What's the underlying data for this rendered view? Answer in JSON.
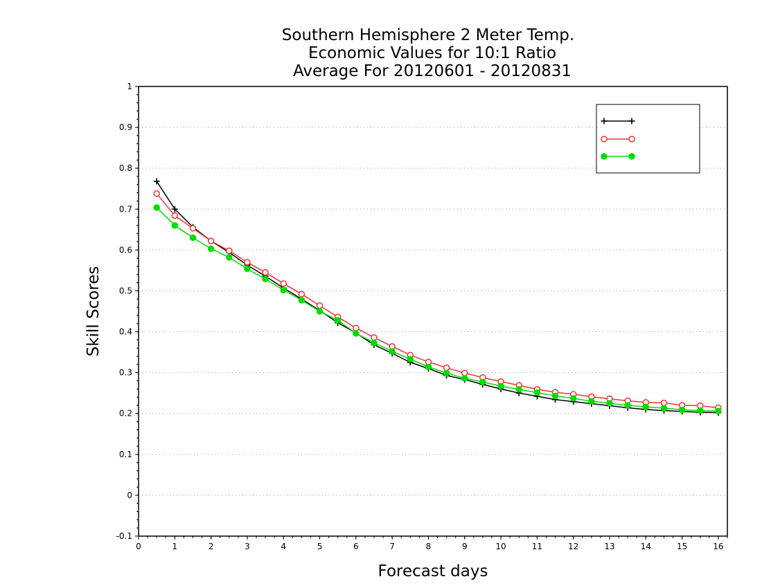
{
  "chart_data": {
    "type": "line",
    "title": [
      "Southern Hemisphere 2 Meter Temp.",
      "Economic Values for 10:1 Ratio",
      "Average For 20120601 - 20120831"
    ],
    "xlabel": "Forecast days",
    "ylabel": "Skill Scores",
    "xlim": [
      0,
      16.25
    ],
    "ylim": [
      -0.1,
      1
    ],
    "xticks": [
      "0",
      "1",
      "2",
      "3",
      "4",
      "5",
      "6",
      "7",
      "8",
      "9",
      "10",
      "11",
      "12",
      "13",
      "14",
      "15",
      "16"
    ],
    "yticks": [
      "-0.1",
      "0",
      "0.1",
      "0.2",
      "0.3",
      "0.4",
      "0.5",
      "0.6",
      "0.7",
      "0.8",
      "0.9",
      "1"
    ],
    "grid": true,
    "legend_position": "top-right",
    "x": [
      0.5,
      1,
      1.5,
      2,
      2.5,
      3,
      3.5,
      4,
      4.5,
      5,
      5.5,
      6,
      6.5,
      7,
      7.5,
      8,
      8.5,
      9,
      9.5,
      10,
      10.5,
      11,
      11.5,
      12,
      12.5,
      13,
      13.5,
      14,
      14.5,
      15,
      15.5,
      16
    ],
    "series": [
      {
        "name": "",
        "color": "#000000",
        "marker": "plus",
        "values": [
          0.768,
          0.7,
          0.656,
          0.622,
          0.594,
          0.563,
          0.536,
          0.507,
          0.48,
          0.452,
          0.422,
          0.397,
          0.368,
          0.347,
          0.325,
          0.31,
          0.293,
          0.283,
          0.271,
          0.26,
          0.25,
          0.242,
          0.234,
          0.229,
          0.224,
          0.219,
          0.214,
          0.21,
          0.207,
          0.205,
          0.203,
          0.202
        ]
      },
      {
        "name": "",
        "color": "#ee3333",
        "marker": "open-circle",
        "values": [
          0.738,
          0.684,
          0.653,
          0.622,
          0.598,
          0.57,
          0.545,
          0.518,
          0.492,
          0.464,
          0.436,
          0.409,
          0.386,
          0.364,
          0.343,
          0.326,
          0.312,
          0.299,
          0.288,
          0.278,
          0.269,
          0.259,
          0.252,
          0.247,
          0.241,
          0.236,
          0.231,
          0.227,
          0.226,
          0.22,
          0.219,
          0.214
        ]
      },
      {
        "name": "",
        "color": "#00dd00",
        "marker": "filled-circle",
        "values": [
          0.704,
          0.66,
          0.63,
          0.603,
          0.582,
          0.554,
          0.529,
          0.502,
          0.477,
          0.45,
          0.428,
          0.396,
          0.373,
          0.352,
          0.333,
          0.314,
          0.299,
          0.286,
          0.277,
          0.267,
          0.259,
          0.251,
          0.243,
          0.237,
          0.23,
          0.225,
          0.22,
          0.216,
          0.213,
          0.209,
          0.207,
          0.206
        ]
      }
    ]
  }
}
